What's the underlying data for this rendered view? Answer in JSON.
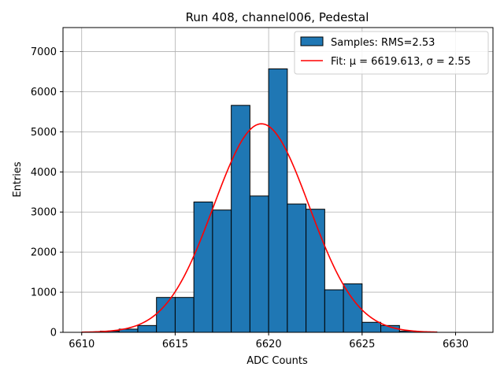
{
  "chart_data": {
    "type": "bar",
    "title": "Run 408, channel006, Pedestal",
    "xlabel": "ADC Counts",
    "ylabel": "Entries",
    "xlim": [
      6609.0,
      6632.0
    ],
    "ylim": [
      0,
      7600
    ],
    "xticks": [
      6610,
      6615,
      6620,
      6625,
      6630
    ],
    "yticks": [
      0,
      1000,
      2000,
      3000,
      4000,
      5000,
      6000,
      7000
    ],
    "grid": true,
    "legend_position": "top-right",
    "histogram": {
      "name": "Samples: RMS=2.53",
      "color": "#1f77b4",
      "edge_color": "#000000",
      "bin_edges": [
        6611,
        6612,
        6613,
        6614,
        6615,
        6616,
        6617,
        6618,
        6619,
        6620,
        6621,
        6622,
        6623,
        6624,
        6625,
        6626,
        6627,
        6628,
        6629
      ],
      "values": [
        30,
        80,
        170,
        870,
        870,
        3250,
        3050,
        5660,
        3400,
        6570,
        3200,
        3070,
        1060,
        1210,
        250,
        170,
        30,
        10
      ]
    },
    "fit": {
      "name": "Fit: μ = 6619.613, σ = 2.55",
      "color": "#ff0000",
      "mu": 6619.613,
      "sigma": 2.55,
      "amplitude": 5200,
      "x_range": [
        6610.0,
        6629.0
      ]
    }
  }
}
